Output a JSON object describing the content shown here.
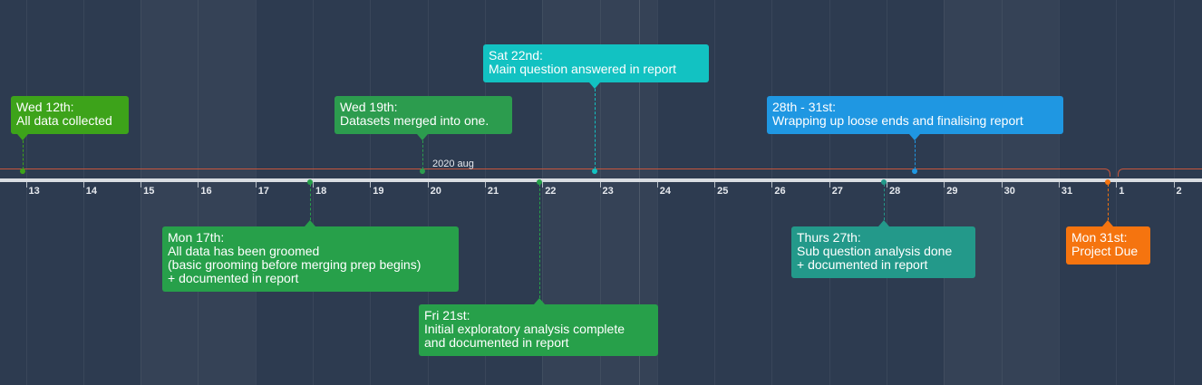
{
  "timeline": {
    "month_label": "2020 aug",
    "day_ticks": [
      "13",
      "14",
      "15",
      "16",
      "17",
      "18",
      "19",
      "20",
      "21",
      "22",
      "23",
      "24",
      "25",
      "26",
      "27",
      "28",
      "29",
      "30",
      "31",
      "1",
      "2"
    ]
  },
  "events": [
    {
      "id": "wed12",
      "title": "Wed 12th:",
      "lines": [
        "All data collected"
      ],
      "color": "#3da31a",
      "placement": "above"
    },
    {
      "id": "mon17",
      "title": "Mon 17th:",
      "lines": [
        "All data has been groomed",
        "(basic grooming before merging prep begins)",
        "+ documented in report"
      ],
      "color": "#27a04a",
      "placement": "below"
    },
    {
      "id": "wed19",
      "title": "Wed 19th:",
      "lines": [
        "Datasets merged into one."
      ],
      "color": "#2c9c4e",
      "placement": "above"
    },
    {
      "id": "fri21",
      "title": "Fri 21st:",
      "lines": [
        "Initial exploratory analysis complete",
        "and documented in report"
      ],
      "color": "#27a04a",
      "placement": "below"
    },
    {
      "id": "sat22",
      "title": "Sat 22nd:",
      "lines": [
        "Main question answered in report"
      ],
      "color": "#12c2c2",
      "placement": "above"
    },
    {
      "id": "thu27",
      "title": "Thurs 27th:",
      "lines": [
        "Sub question analysis done",
        "+ documented in report"
      ],
      "color": "#23998a",
      "placement": "below"
    },
    {
      "id": "r28_31",
      "title": "28th - 31st:",
      "lines": [
        "Wrapping up loose ends and finalising report"
      ],
      "color": "#1f97e2",
      "placement": "above"
    },
    {
      "id": "mon31",
      "title": "Mon 31st:",
      "lines": [
        "Project Due"
      ],
      "color": "#f5740f",
      "placement": "below"
    }
  ],
  "colors": {
    "background": "#2d3b50",
    "range_line": "#c7553b",
    "axis": "#d9dde2"
  }
}
